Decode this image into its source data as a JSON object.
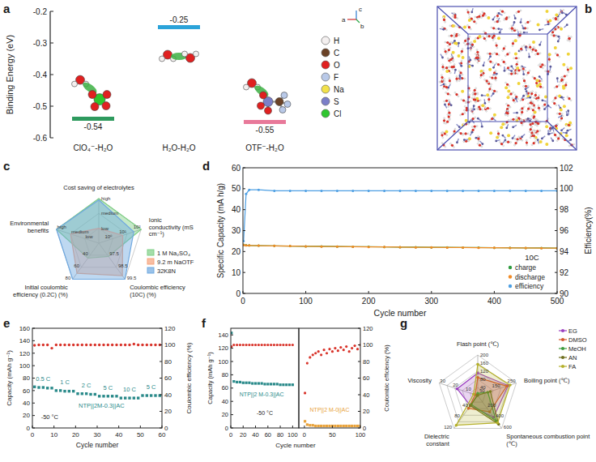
{
  "chart_data": [
    {
      "panel": "a",
      "type": "level",
      "y_label": "Binding Energy (eV)",
      "ylim": [
        -0.6,
        -0.2
      ],
      "yticks": [
        -0.2,
        -0.3,
        -0.4,
        -0.5,
        -0.6
      ],
      "categories": [
        "ClO₄⁻-H₂O",
        "H₂O-H₂O",
        "OTF⁻-H₂O"
      ],
      "values": [
        -0.54,
        -0.25,
        -0.55
      ],
      "colors": [
        "#2e9a5e",
        "#2ba3d9",
        "#e8799a"
      ],
      "data_labels": true,
      "atoms": [
        {
          "name": "H",
          "color": "#f4f0f0"
        },
        {
          "name": "C",
          "color": "#6b4226"
        },
        {
          "name": "O",
          "color": "#e02020"
        },
        {
          "name": "F",
          "color": "#b9c9e8"
        },
        {
          "name": "Na",
          "color": "#f2e14a"
        },
        {
          "name": "S",
          "color": "#7b7fc8"
        },
        {
          "name": "Cl",
          "color": "#2fc62f"
        }
      ],
      "crystal_axes": [
        "a",
        "b",
        "c"
      ]
    },
    {
      "panel": "b",
      "type": "image"
    },
    {
      "panel": "c",
      "type": "radar",
      "legend": "right",
      "axes": [
        {
          "label": "Cost saving of electrolytes",
          "lim": [
            0,
            3
          ],
          "ticks": [
            {
              "value": 1,
              "label": "low"
            },
            {
              "value": 2,
              "label": "medium"
            },
            {
              "value": 3,
              "label": "high"
            }
          ]
        },
        {
          "label": "Ionic conductivity (mS cm⁻¹)",
          "lim": [
            0.1,
            100
          ],
          "log": true,
          "ticks": [
            {
              "value": 1,
              "label": "10⁰"
            },
            {
              "value": 10,
              "label": "10¹"
            },
            {
              "value": 100,
              "label": "10²"
            }
          ]
        },
        {
          "label": "Coulombic efficiency (10C) (%)",
          "lim": [
            96.5,
            99.5
          ],
          "ticks": [
            97.5,
            98.5,
            99.5
          ]
        },
        {
          "label": "Initial coulombic efficiency (0.2C) (%)",
          "lim": [
            20,
            80
          ],
          "ticks": [
            40,
            60,
            80
          ]
        },
        {
          "label": "Environmental benefits",
          "lim": [
            0,
            3
          ],
          "ticks": [
            {
              "value": 1,
              "label": "low"
            },
            {
              "value": 2,
              "label": "medium"
            },
            {
              "value": 3,
              "label": "high"
            }
          ]
        }
      ],
      "series": [
        {
          "name": "1 M Na₂SO₄",
          "color": "#7fcf86",
          "values": [
            3,
            100,
            97.6,
            45,
            3
          ]
        },
        {
          "name": "9.2 m NaOTF",
          "color": "#f5a37c",
          "values": [
            1,
            5,
            99.2,
            70,
            2
          ]
        },
        {
          "name": "32K8N",
          "color": "#6fa8e0",
          "values": [
            2.9,
            30,
            99.5,
            80,
            3
          ]
        }
      ]
    },
    {
      "panel": "d",
      "type": "line",
      "x_label": "Cycle number",
      "y_label": "Specific Capacity (mA h/g)",
      "y2_label": "Efficiency(%)",
      "xlim": [
        0,
        500
      ],
      "xticks": [
        0,
        100,
        200,
        300,
        400,
        500
      ],
      "ylim": [
        0,
        60
      ],
      "yticks": [
        0,
        10,
        20,
        30,
        40,
        50,
        60
      ],
      "y2lim": [
        90,
        102
      ],
      "y2ticks": [
        90,
        92,
        94,
        96,
        98,
        100,
        102
      ],
      "legend": "lower right",
      "series": [
        {
          "name": "charge",
          "color": "#2e9b3e",
          "marker": "circle",
          "line_style": "solid",
          "x": [
            1,
            5,
            10,
            25,
            50,
            75,
            100,
            125,
            150,
            175,
            200,
            225,
            250,
            275,
            300,
            325,
            350,
            375,
            400,
            425,
            450,
            475,
            500
          ],
          "values": [
            23.2,
            23.0,
            22.9,
            22.8,
            22.7,
            22.6,
            22.5,
            22.5,
            22.4,
            22.3,
            22.3,
            22.2,
            22.1,
            22.1,
            22.0,
            22.0,
            21.9,
            21.9,
            21.8,
            21.8,
            21.7,
            21.7,
            21.6
          ]
        },
        {
          "name": "discharge",
          "color": "#f28a24",
          "marker": "circle",
          "line_style": "solid",
          "x": [
            1,
            5,
            10,
            25,
            50,
            75,
            100,
            125,
            150,
            175,
            200,
            225,
            250,
            275,
            300,
            325,
            350,
            375,
            400,
            425,
            450,
            475,
            500
          ],
          "values": [
            23.1,
            22.9,
            22.9,
            22.8,
            22.7,
            22.6,
            22.5,
            22.4,
            22.4,
            22.3,
            22.2,
            22.2,
            22.1,
            22.0,
            22.0,
            21.9,
            21.9,
            21.8,
            21.8,
            21.7,
            21.7,
            21.6,
            21.6
          ]
        },
        {
          "name": "efficiency",
          "color": "#4d9fe3",
          "marker": "circle",
          "line_style": "solid",
          "axis": "y2",
          "x": [
            1,
            5,
            10,
            25,
            50,
            75,
            100,
            125,
            150,
            175,
            200,
            225,
            250,
            275,
            300,
            325,
            350,
            375,
            400,
            425,
            450,
            475,
            500
          ],
          "values": [
            95.0,
            99.5,
            99.9,
            99.9,
            99.8,
            99.8,
            99.8,
            99.8,
            99.8,
            99.8,
            99.8,
            99.8,
            99.8,
            99.8,
            99.8,
            99.8,
            99.8,
            99.8,
            99.8,
            99.8,
            99.8,
            99.8,
            99.8
          ]
        }
      ],
      "annotations": [
        {
          "text": "10C",
          "x": 460,
          "y": 16
        }
      ]
    },
    {
      "panel": "e",
      "type": "line",
      "x_label": "Cycle number",
      "y_label": "Capacity (mAh g⁻¹)",
      "y2_label": "Coulombic efficiency (%)",
      "xlim": [
        0,
        60
      ],
      "xticks": [
        0,
        10,
        20,
        30,
        40,
        50,
        60
      ],
      "ylim": [
        0,
        160
      ],
      "yticks": [
        0,
        20,
        40,
        60,
        80,
        100,
        120,
        140,
        160
      ],
      "y2lim": [
        0,
        120
      ],
      "y2ticks": [
        0,
        20,
        40,
        60,
        80,
        100,
        120
      ],
      "series": [
        {
          "color": "#2a8a8a",
          "marker": "square",
          "line_style": "none",
          "x": [
            1,
            3,
            5,
            7,
            9,
            11,
            13,
            15,
            17,
            19,
            21,
            23,
            25,
            27,
            29,
            31,
            33,
            35,
            37,
            39,
            41,
            43,
            45,
            47,
            49,
            51,
            53,
            55,
            57,
            59
          ],
          "values": [
            66,
            65,
            65,
            64,
            64,
            60,
            60,
            59,
            59,
            59,
            55,
            55,
            55,
            54,
            54,
            51,
            51,
            51,
            51,
            51,
            48,
            48,
            48,
            48,
            48,
            52,
            52,
            52,
            52,
            52
          ]
        },
        {
          "color": "#d9342b",
          "marker": "circle",
          "line_style": "none",
          "axis": "y2",
          "x": [
            1,
            3,
            5,
            7,
            9,
            11,
            13,
            15,
            17,
            19,
            21,
            23,
            25,
            27,
            29,
            31,
            33,
            35,
            37,
            39,
            41,
            43,
            45,
            47,
            49,
            51,
            53,
            55,
            57,
            59
          ],
          "values": [
            99.5,
            100,
            100,
            100,
            96,
            100,
            100,
            100,
            100,
            100,
            100,
            100,
            100,
            100,
            100,
            100,
            100,
            100,
            100,
            100,
            100,
            100,
            100,
            101,
            100,
            100,
            100,
            100,
            100,
            100
          ]
        }
      ],
      "annotations": [
        {
          "text": "0.5 C",
          "x": 5,
          "y": 76,
          "color": "#2a8a8a"
        },
        {
          "text": "1 C",
          "x": 15,
          "y": 70,
          "color": "#2a8a8a"
        },
        {
          "text": "2 C",
          "x": 25,
          "y": 65,
          "color": "#2a8a8a"
        },
        {
          "text": "5 C",
          "x": 35,
          "y": 61,
          "color": "#2a8a8a"
        },
        {
          "text": "10 C",
          "x": 45,
          "y": 58,
          "color": "#2a8a8a"
        },
        {
          "text": "5 C",
          "x": 55,
          "y": 62,
          "color": "#2a8a8a"
        },
        {
          "text": "NTP||2M-0.3||AC",
          "x": 32,
          "y": 32,
          "color": "#2a8a8a"
        },
        {
          "text": "-50 °C",
          "x": 8,
          "y": 14
        }
      ]
    },
    {
      "panel": "f",
      "type": "line",
      "x_label": "Cycle number",
      "y_label": "Capacity (mAh g⁻¹)",
      "xlim": [
        0,
        110
      ],
      "xticks": [
        0,
        20,
        40,
        60,
        80,
        100
      ],
      "ylim": [
        0,
        150
      ],
      "yticks": [
        0,
        20,
        40,
        60,
        80,
        100,
        120,
        140
      ],
      "y2lim": [
        0,
        120
      ],
      "series": [
        {
          "color": "#2a8a8a",
          "marker": "square",
          "line_style": "none",
          "x": [
            1,
            5,
            10,
            15,
            20,
            25,
            30,
            35,
            40,
            45,
            50,
            55,
            60,
            65,
            70,
            75,
            80,
            85,
            90,
            95,
            100
          ],
          "values": [
            143,
            70,
            69,
            69,
            68,
            68,
            68,
            67,
            67,
            67,
            67,
            66,
            66,
            66,
            66,
            66,
            65,
            65,
            65,
            65,
            65
          ]
        },
        {
          "color": "#d9342b",
          "marker": "circle",
          "line_style": "none",
          "axis": "y2",
          "x": [
            1,
            5,
            10,
            15,
            20,
            25,
            30,
            35,
            40,
            45,
            50,
            55,
            60,
            65,
            70,
            75,
            80,
            85,
            90,
            95,
            100
          ],
          "values": [
            98,
            100,
            100,
            100,
            100,
            100,
            100,
            100,
            100,
            100,
            100,
            100,
            100,
            100,
            100,
            100,
            100,
            100,
            100,
            100,
            100
          ]
        }
      ],
      "annotations": [
        {
          "text": "-50 °C",
          "x": 55,
          "y": 20
        },
        {
          "text": "NTP||2 M-0.3||AC",
          "x": 50,
          "y": 48,
          "color": "#2a8a8a"
        }
      ]
    },
    {
      "type": "line",
      "y2_label": "Coulombic efficiency (%)",
      "xlim": [
        -10,
        100
      ],
      "xticks": [
        0,
        50,
        100
      ],
      "ylim": [
        0,
        150
      ],
      "y2lim": [
        0,
        120
      ],
      "y2ticks": [
        0,
        20,
        40,
        60,
        80,
        100,
        120
      ],
      "series": [
        {
          "color": "#e8a23a",
          "marker": "square",
          "line_style": "none",
          "x": [
            1,
            5,
            10,
            15,
            20,
            25,
            30,
            35,
            40,
            45,
            50,
            55,
            60,
            65,
            70,
            75,
            80,
            85,
            90,
            95,
            100
          ],
          "values": [
            10,
            5,
            4,
            4,
            3,
            3,
            3,
            3,
            3,
            3,
            3,
            3,
            3,
            3,
            3,
            3,
            3,
            3,
            3,
            3,
            3
          ]
        },
        {
          "color": "#d9342b",
          "marker": "circle",
          "line_style": "none",
          "axis": "y2",
          "x": [
            1,
            5,
            10,
            15,
            20,
            25,
            30,
            35,
            40,
            45,
            50,
            55,
            60,
            65,
            70,
            75,
            80,
            85,
            90,
            95,
            100
          ],
          "values": [
            42,
            78,
            85,
            88,
            90,
            92,
            88,
            94,
            90,
            95,
            92,
            96,
            93,
            97,
            94,
            98,
            92,
            96,
            99,
            95,
            100
          ]
        }
      ],
      "annotations": [
        {
          "text": "NTP||2 M-0||AC",
          "x": 45,
          "y": 25,
          "color": "#e8a23a"
        }
      ]
    },
    {
      "panel": "g",
      "type": "radar",
      "legend": "upper right",
      "axes": [
        {
          "label": "Flash point (℃)",
          "lim": [
            0,
            200
          ],
          "ticks": [
            40,
            80,
            120,
            160,
            200
          ]
        },
        {
          "label": "Boiling point (℃)",
          "lim": [
            0,
            250
          ],
          "ticks": [
            50,
            150,
            250
          ]
        },
        {
          "label": "Spontaneous combustion point (℃)",
          "lim": [
            0,
            600
          ],
          "ticks": [
            200,
            400,
            600
          ]
        },
        {
          "label": "Dielectric constant",
          "lim": [
            0,
            120
          ],
          "ticks": [
            40,
            80,
            120
          ]
        },
        {
          "label": "Viscosity",
          "lim": [
            0,
            30
          ],
          "ticks": [
            10,
            20,
            30
          ]
        }
      ],
      "series": [
        {
          "name": "EG",
          "color": "#9b3fc0",
          "marker": "circle",
          "values": [
            111,
            197,
            398,
            37,
            16.1
          ]
        },
        {
          "name": "DMSO",
          "color": "#d4552b",
          "marker": "circle",
          "values": [
            89,
            189,
            300,
            47,
            2.0
          ]
        },
        {
          "name": "MeOH",
          "color": "#3c9b3c",
          "marker": "circle",
          "values": [
            11,
            65,
            464,
            33,
            0.54
          ]
        },
        {
          "name": "AN",
          "color": "#6e6e1e",
          "marker": "circle",
          "values": [
            2,
            82,
            524,
            37.5,
            0.34
          ]
        },
        {
          "name": "FA",
          "color": "#b5b02a",
          "marker": "circle",
          "values": [
            154,
            210,
            500,
            109,
            3.3
          ]
        }
      ]
    }
  ]
}
